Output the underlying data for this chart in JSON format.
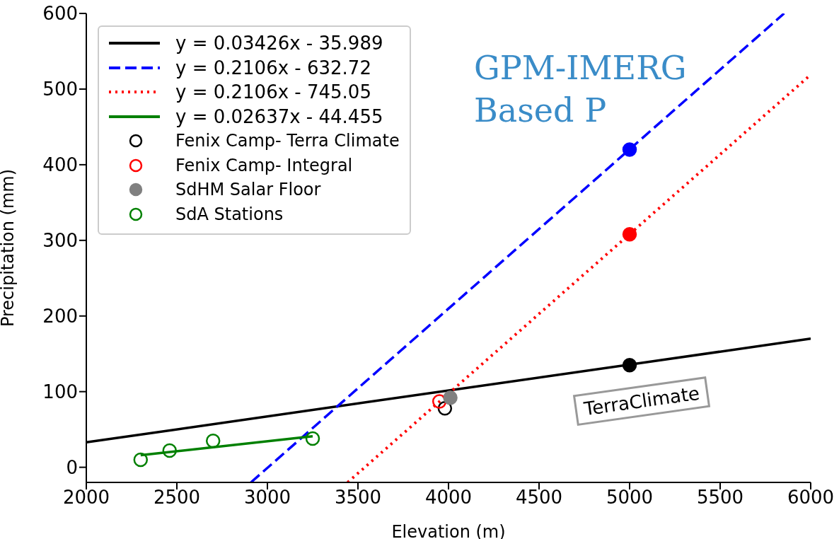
{
  "chart_data": {
    "type": "scatter",
    "xlabel": "Elevation (m)",
    "ylabel": "Precipitation (mm)",
    "xlim": [
      2000,
      6000
    ],
    "xticks": [
      2000,
      2500,
      3000,
      3500,
      4000,
      4500,
      5000,
      5500,
      6000
    ],
    "ylim": [
      -20,
      600
    ],
    "yticks": [
      0,
      100,
      200,
      300,
      400,
      500,
      600
    ],
    "legend": "top left",
    "series": [
      {
        "name": "y = 0.03426x - 35.989",
        "type": "line",
        "color": "#000000",
        "line_style": "solid",
        "marker": "none",
        "x": [
          2000,
          6000
        ],
        "values": [
          33,
          170
        ]
      },
      {
        "name": "y = 0.2106x - 632.72",
        "type": "line",
        "color": "#0000ff",
        "line_style": "dashed",
        "marker": "none",
        "x": [
          2909,
          5853
        ],
        "values": [
          -20,
          600
        ]
      },
      {
        "name": "y = 0.2106x - 745.05",
        "type": "line",
        "color": "#ff0000",
        "line_style": "dotted",
        "marker": "none",
        "x": [
          3443,
          6000
        ],
        "values": [
          -20,
          519
        ]
      },
      {
        "name": "y = 0.02637x - 44.455",
        "type": "line",
        "color": "#008000",
        "line_style": "solid",
        "marker": "none",
        "x": [
          2300,
          3250
        ],
        "values": [
          16,
          41
        ]
      },
      {
        "name": "Fenix Camp- Terra Climate",
        "type": "scatter",
        "color": "#000000",
        "marker": "circle",
        "x": [
          3980
        ],
        "values": [
          78
        ]
      },
      {
        "name": "Fenix Camp- Integral",
        "type": "scatter",
        "color": "#ff0000",
        "marker": "circle",
        "x": [
          3950
        ],
        "values": [
          87
        ]
      },
      {
        "name": "SdHM Salar Floor",
        "type": "scatter",
        "color": "#808080",
        "marker": "circle",
        "x": [
          4010
        ],
        "values": [
          92
        ]
      },
      {
        "name": "SdA Stations",
        "type": "scatter",
        "color": "#008000",
        "marker": "circle",
        "x": [
          2300,
          2460,
          2700,
          3250
        ],
        "values": [
          10,
          22,
          35,
          38
        ]
      },
      {
        "type": "scatter",
        "color": "#0000ff",
        "marker": "circle",
        "x": [
          5000
        ],
        "values": [
          420
        ]
      },
      {
        "type": "scatter",
        "color": "#ff0000",
        "marker": "circle",
        "x": [
          5000
        ],
        "values": [
          308
        ]
      },
      {
        "type": "scatter",
        "color": "#000000",
        "marker": "circle",
        "x": [
          5000
        ],
        "values": [
          135
        ]
      }
    ],
    "annotations": [
      "GPM-IMERG\nBased P",
      "TerraClimate"
    ]
  }
}
